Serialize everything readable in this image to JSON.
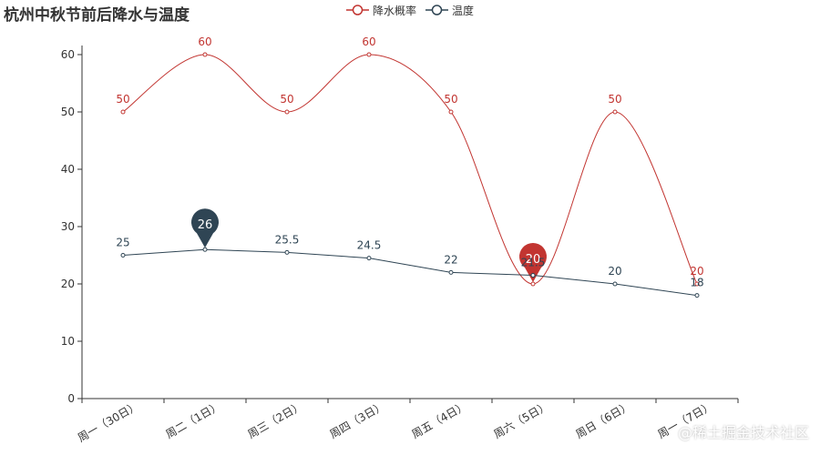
{
  "chart_data": {
    "type": "line",
    "title": "杭州中秋节前后降水与温度",
    "categories": [
      "周一（30日）",
      "周二（1日）",
      "周三（2日）",
      "周四（3日）",
      "周五（4日）",
      "周六（5日）",
      "周日（6日）",
      "周一（7日）"
    ],
    "ylim": [
      0,
      60
    ],
    "yticks": [
      0,
      10,
      20,
      30,
      40,
      50,
      60
    ],
    "grid": false,
    "legend_position": "top-center",
    "series": [
      {
        "name": "降水概率",
        "color": "#c23531",
        "smooth": true,
        "values": [
          50,
          60,
          50,
          60,
          50,
          20,
          50,
          20
        ],
        "max_pin": null,
        "min_pin": 20,
        "min_index": 5,
        "max_index": null
      },
      {
        "name": "温度",
        "color": "#2f4554",
        "smooth": false,
        "values": [
          25,
          26,
          25.5,
          24.5,
          22,
          21.5,
          20,
          18
        ],
        "max_pin": 26,
        "max_index": 1,
        "min_pin": null,
        "min_index": null
      }
    ]
  },
  "watermark": "@稀土掘金技术社区"
}
